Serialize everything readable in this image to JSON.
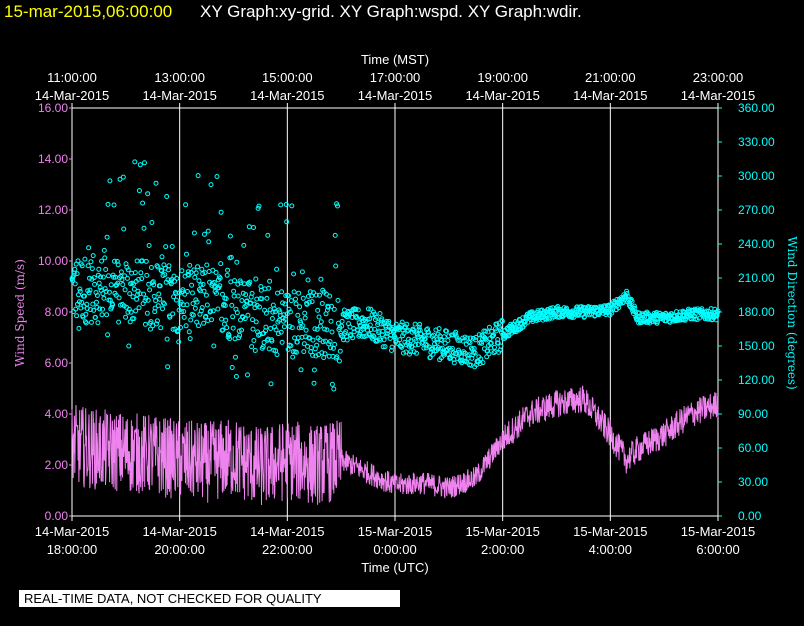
{
  "title": {
    "date": "15-mar-2015,06:00:00",
    "graphs": "XY Graph:xy-grid.  XY Graph:wspd.  XY Graph:wdir."
  },
  "notice": "REAL-TIME DATA, NOT CHECKED FOR QUALITY",
  "colors": {
    "background": "#000000",
    "wind_speed": "#ee82ee",
    "wind_direction": "#00ffff",
    "title_date": "#ffff00",
    "grid": "#ffffff"
  },
  "chart_data": {
    "type": "line",
    "top_axis": {
      "title": "Time (MST)",
      "ticks": [
        {
          "time": "11:00:00",
          "date": "14-Mar-2015"
        },
        {
          "time": "13:00:00",
          "date": "14-Mar-2015"
        },
        {
          "time": "15:00:00",
          "date": "14-Mar-2015"
        },
        {
          "time": "17:00:00",
          "date": "14-Mar-2015"
        },
        {
          "time": "19:00:00",
          "date": "14-Mar-2015"
        },
        {
          "time": "21:00:00",
          "date": "14-Mar-2015"
        },
        {
          "time": "23:00:00",
          "date": "14-Mar-2015"
        }
      ]
    },
    "bottom_axis": {
      "title": "Time (UTC)",
      "ticks": [
        {
          "date": "14-Mar-2015",
          "time": "18:00:00"
        },
        {
          "date": "14-Mar-2015",
          "time": "20:00:00"
        },
        {
          "date": "14-Mar-2015",
          "time": "22:00:00"
        },
        {
          "date": "15-Mar-2015",
          "time": "0:00:00"
        },
        {
          "date": "15-Mar-2015",
          "time": "2:00:00"
        },
        {
          "date": "15-Mar-2015",
          "time": "4:00:00"
        },
        {
          "date": "15-Mar-2015",
          "time": "6:00:00"
        }
      ],
      "x_range_hours_utc": [
        18,
        30
      ]
    },
    "left_axis": {
      "label": "Wind Speed (m/s)",
      "range": [
        0,
        16
      ],
      "ticks": [
        "0.00",
        "2.00",
        "4.00",
        "6.00",
        "8.00",
        "10.00",
        "12.00",
        "14.00",
        "16.00"
      ]
    },
    "right_axis": {
      "label": "Wind Direction (degrees)",
      "range": [
        0,
        360
      ],
      "ticks": [
        "0.00",
        "30.00",
        "60.00",
        "90.00",
        "120.00",
        "150.00",
        "180.00",
        "210.00",
        "240.00",
        "270.00",
        "300.00",
        "330.00",
        "360.00"
      ]
    },
    "grid": true,
    "series": [
      {
        "name": "wspd",
        "style": "line",
        "axis": "left",
        "x_hours_utc": [
          18.0,
          18.5,
          19.0,
          19.5,
          20.0,
          20.5,
          21.0,
          21.5,
          22.0,
          22.5,
          23.0,
          23.5,
          24.0,
          24.5,
          25.0,
          25.5,
          26.0,
          26.5,
          27.0,
          27.5,
          28.0,
          28.3,
          28.5,
          29.0,
          29.5,
          30.0
        ],
        "values": [
          2.8,
          2.6,
          2.5,
          2.4,
          2.2,
          2.1,
          2.3,
          1.9,
          2.2,
          2.0,
          2.2,
          1.7,
          1.2,
          1.3,
          1.1,
          1.5,
          3.0,
          4.0,
          4.4,
          4.6,
          3.2,
          2.2,
          2.6,
          3.2,
          4.0,
          4.4
        ]
      },
      {
        "name": "wdir",
        "style": "scatter",
        "axis": "right",
        "x_hours_utc": [
          18.0,
          18.5,
          19.0,
          19.5,
          20.0,
          20.5,
          21.0,
          21.5,
          22.0,
          22.5,
          23.0,
          23.5,
          24.0,
          24.5,
          25.0,
          25.5,
          26.0,
          26.5,
          27.0,
          27.5,
          28.0,
          28.3,
          28.5,
          29.0,
          29.5,
          30.0
        ],
        "values": [
          200,
          200,
          198,
          195,
          192,
          190,
          185,
          175,
          170,
          170,
          168,
          170,
          158,
          155,
          150,
          145,
          160,
          175,
          180,
          180,
          182,
          195,
          175,
          175,
          178,
          178
        ]
      }
    ]
  }
}
